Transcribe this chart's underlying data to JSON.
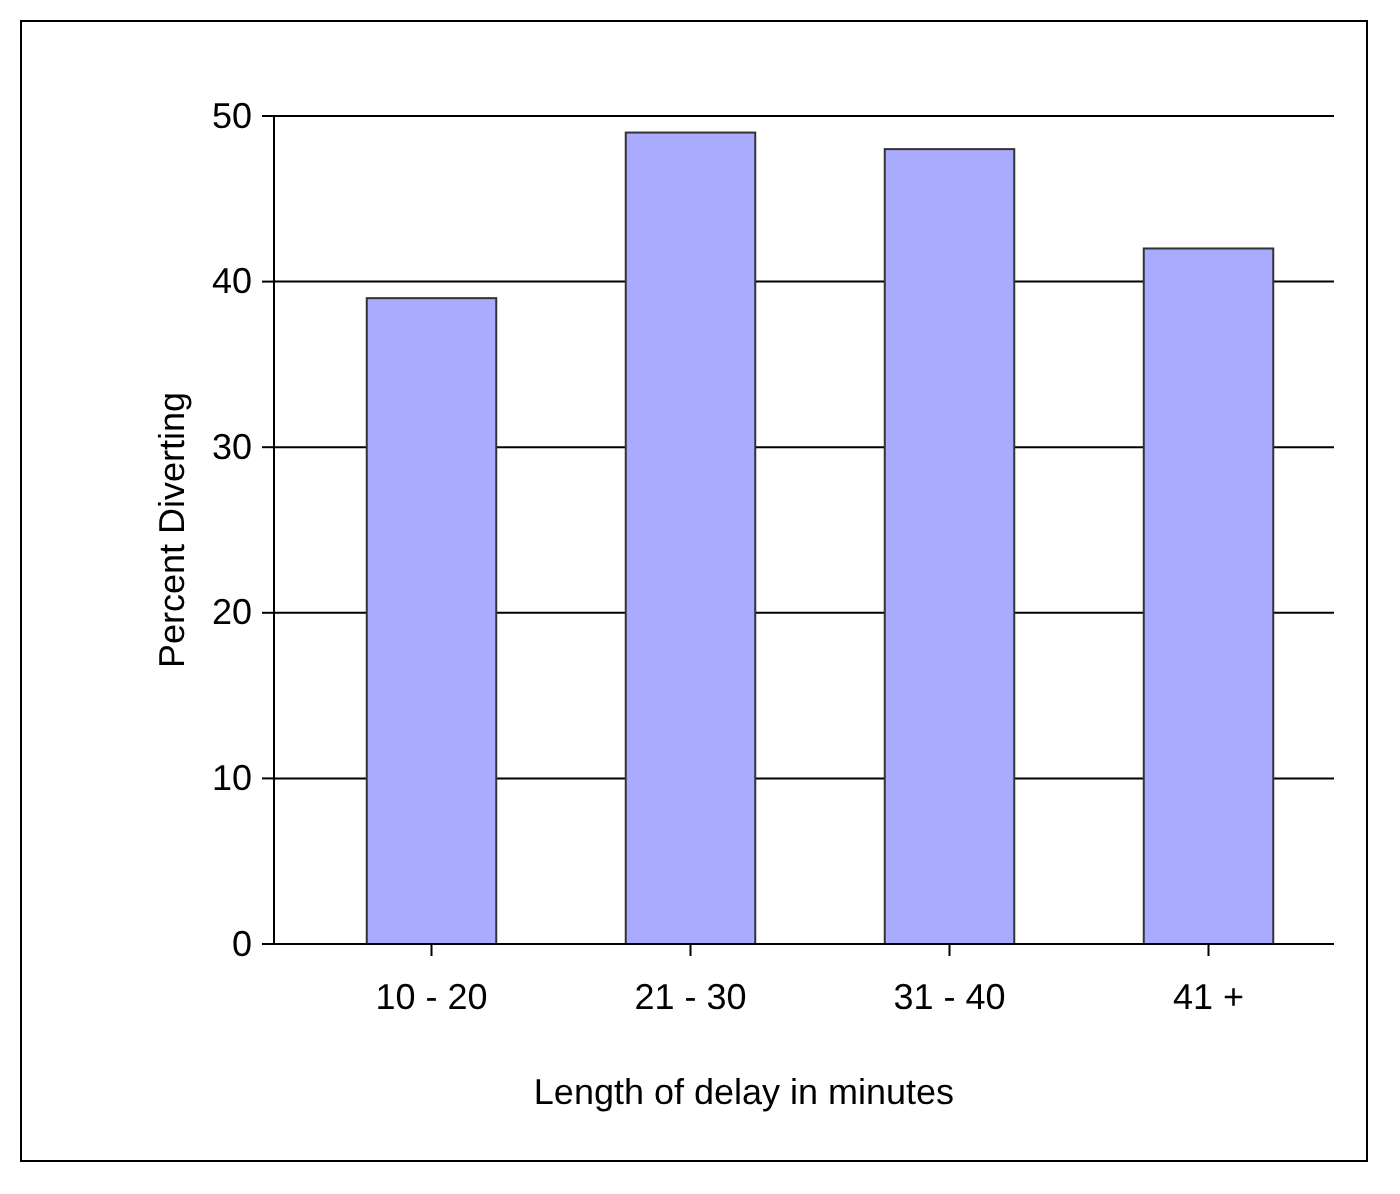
{
  "chart_data": {
    "type": "bar",
    "xlabel": "Length of delay in minutes",
    "ylabel": "Percent Diverting",
    "categories": [
      "10 - 20",
      "21 - 30",
      "31 - 40",
      "41 +"
    ],
    "values": [
      39,
      49,
      48,
      42
    ],
    "color": "#aaaaff",
    "ylim": [
      0,
      50
    ],
    "yticks": [
      0,
      10,
      20,
      30,
      40,
      50
    ],
    "grid": "y"
  }
}
